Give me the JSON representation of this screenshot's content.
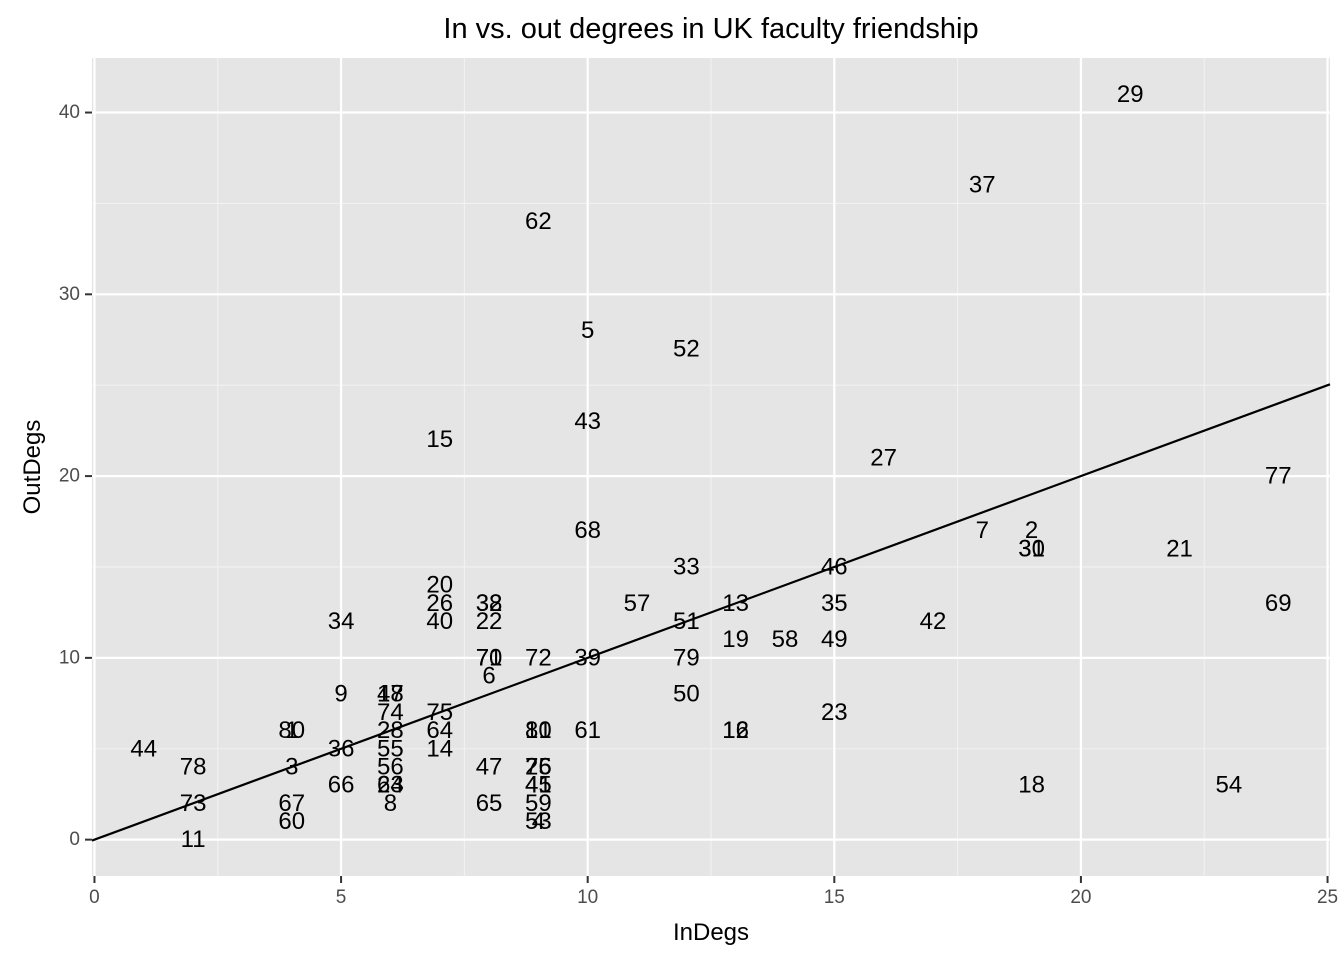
{
  "chart_data": {
    "type": "scatter",
    "title": "In vs. out degrees in UK faculty friendship",
    "xlabel": "InDegs",
    "ylabel": "OutDegs",
    "xlim": [
      -0.05,
      25.05
    ],
    "ylim": [
      -2,
      43
    ],
    "x_ticks": [
      0,
      5,
      10,
      15,
      20,
      25
    ],
    "y_ticks": [
      0,
      10,
      20,
      30,
      40
    ],
    "grid": true,
    "reference_line": {
      "slope": 1,
      "intercept": 0
    },
    "points": [
      {
        "label": "29",
        "x": 21,
        "y": 41
      },
      {
        "label": "37",
        "x": 18,
        "y": 36
      },
      {
        "label": "62",
        "x": 9,
        "y": 34
      },
      {
        "label": "5",
        "x": 10,
        "y": 28
      },
      {
        "label": "52",
        "x": 12,
        "y": 27
      },
      {
        "label": "43",
        "x": 10,
        "y": 23
      },
      {
        "label": "15",
        "x": 7,
        "y": 22
      },
      {
        "label": "27",
        "x": 16,
        "y": 21
      },
      {
        "label": "77",
        "x": 24,
        "y": 20
      },
      {
        "label": "68",
        "x": 10,
        "y": 17
      },
      {
        "label": "7",
        "x": 18,
        "y": 17
      },
      {
        "label": "2",
        "x": 19,
        "y": 17
      },
      {
        "label": "30",
        "x": 19,
        "y": 16
      },
      {
        "label": "31",
        "x": 19,
        "y": 16
      },
      {
        "label": "21",
        "x": 22,
        "y": 16
      },
      {
        "label": "33",
        "x": 12,
        "y": 15
      },
      {
        "label": "46",
        "x": 15,
        "y": 15
      },
      {
        "label": "20",
        "x": 7,
        "y": 14
      },
      {
        "label": "26",
        "x": 7,
        "y": 13
      },
      {
        "label": "38",
        "x": 8,
        "y": 13
      },
      {
        "label": "32",
        "x": 8,
        "y": 13
      },
      {
        "label": "57",
        "x": 11,
        "y": 13
      },
      {
        "label": "13",
        "x": 13,
        "y": 13
      },
      {
        "label": "35",
        "x": 15,
        "y": 13
      },
      {
        "label": "69",
        "x": 24,
        "y": 13
      },
      {
        "label": "34",
        "x": 5,
        "y": 12
      },
      {
        "label": "40",
        "x": 7,
        "y": 12
      },
      {
        "label": "22",
        "x": 8,
        "y": 12
      },
      {
        "label": "51",
        "x": 12,
        "y": 12
      },
      {
        "label": "42",
        "x": 17,
        "y": 12
      },
      {
        "label": "19",
        "x": 13,
        "y": 11
      },
      {
        "label": "58",
        "x": 14,
        "y": 11
      },
      {
        "label": "49",
        "x": 15,
        "y": 11
      },
      {
        "label": "71",
        "x": 8,
        "y": 10
      },
      {
        "label": "70",
        "x": 8,
        "y": 10
      },
      {
        "label": "72",
        "x": 9,
        "y": 10
      },
      {
        "label": "39",
        "x": 10,
        "y": 10
      },
      {
        "label": "79",
        "x": 12,
        "y": 10
      },
      {
        "label": "6",
        "x": 8,
        "y": 9
      },
      {
        "label": "9",
        "x": 5,
        "y": 8
      },
      {
        "label": "48",
        "x": 6,
        "y": 8
      },
      {
        "label": "17",
        "x": 6,
        "y": 8
      },
      {
        "label": "50",
        "x": 12,
        "y": 8
      },
      {
        "label": "74",
        "x": 6,
        "y": 7
      },
      {
        "label": "75",
        "x": 7,
        "y": 7
      },
      {
        "label": "23",
        "x": 15,
        "y": 7
      },
      {
        "label": "80",
        "x": 4,
        "y": 6
      },
      {
        "label": "1",
        "x": 4,
        "y": 6
      },
      {
        "label": "28",
        "x": 6,
        "y": 6
      },
      {
        "label": "64",
        "x": 7,
        "y": 6
      },
      {
        "label": "81",
        "x": 9,
        "y": 6
      },
      {
        "label": "10",
        "x": 9,
        "y": 6
      },
      {
        "label": "61",
        "x": 10,
        "y": 6
      },
      {
        "label": "12",
        "x": 13,
        "y": 6
      },
      {
        "label": "16",
        "x": 13,
        "y": 6
      },
      {
        "label": "44",
        "x": 1,
        "y": 5
      },
      {
        "label": "36",
        "x": 5,
        "y": 5
      },
      {
        "label": "55",
        "x": 6,
        "y": 5
      },
      {
        "label": "14",
        "x": 7,
        "y": 5
      },
      {
        "label": "78",
        "x": 2,
        "y": 4
      },
      {
        "label": "3",
        "x": 4,
        "y": 4
      },
      {
        "label": "56",
        "x": 6,
        "y": 4
      },
      {
        "label": "47",
        "x": 8,
        "y": 4
      },
      {
        "label": "76",
        "x": 9,
        "y": 4
      },
      {
        "label": "25",
        "x": 9,
        "y": 4
      },
      {
        "label": "66",
        "x": 5,
        "y": 3
      },
      {
        "label": "24",
        "x": 6,
        "y": 3
      },
      {
        "label": "63",
        "x": 6,
        "y": 3
      },
      {
        "label": "41",
        "x": 9,
        "y": 3
      },
      {
        "label": "45",
        "x": 9,
        "y": 3
      },
      {
        "label": "18",
        "x": 19,
        "y": 3
      },
      {
        "label": "54",
        "x": 23,
        "y": 3
      },
      {
        "label": "73",
        "x": 2,
        "y": 2
      },
      {
        "label": "67",
        "x": 4,
        "y": 2
      },
      {
        "label": "8",
        "x": 6,
        "y": 2
      },
      {
        "label": "65",
        "x": 8,
        "y": 2
      },
      {
        "label": "59",
        "x": 9,
        "y": 2
      },
      {
        "label": "60",
        "x": 4,
        "y": 1
      },
      {
        "label": "53",
        "x": 9,
        "y": 1
      },
      {
        "label": "4",
        "x": 9,
        "y": 1
      },
      {
        "label": "11",
        "x": 2,
        "y": 0
      }
    ]
  }
}
